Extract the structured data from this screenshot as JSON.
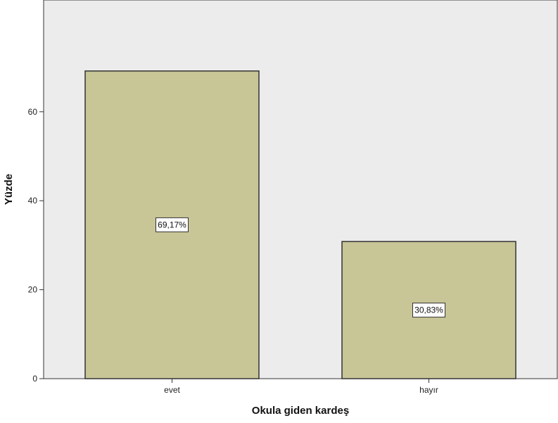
{
  "chart_data": {
    "type": "bar",
    "categories": [
      "evet",
      "hayır"
    ],
    "values": [
      69.17,
      30.83
    ],
    "data_labels": [
      "69,17%",
      "30,83%"
    ],
    "title": "",
    "xlabel": "Okula giden kardeş",
    "ylabel": "Yüzde",
    "ylim": [
      0,
      70
    ],
    "yticks": [
      0,
      20,
      40,
      60
    ],
    "grid": false,
    "colors": {
      "plot_background": "#ececec",
      "bar_fill": "#c8c597",
      "bar_stroke": "#333333"
    }
  }
}
